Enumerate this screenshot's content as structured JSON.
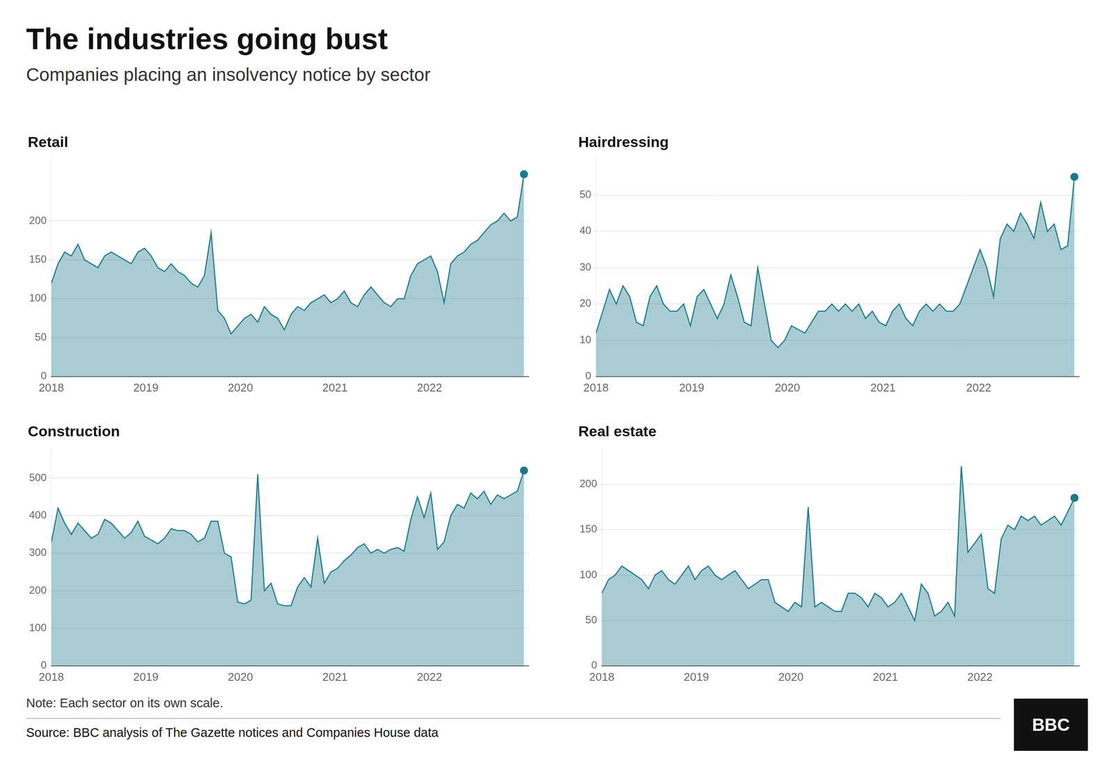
{
  "title": "The industries going bust",
  "subtitle": "Companies placing an insolvency notice by sector",
  "annotations": [
    "Note: Each sector on its own scale.",
    "Source: BBC analysis of The Gazette notices and Companies House data",
    "BBC"
  ],
  "chart_data": [
    {
      "type": "area",
      "title": "Retail",
      "x": [
        2018,
        2018.0704,
        2018.1408,
        2018.2113,
        2018.2817,
        2018.3521,
        2018.4225,
        2018.493,
        2018.5634,
        2018.6338,
        2018.7042,
        2018.7746,
        2018.8451,
        2018.9155,
        2018.9859,
        2019.0563,
        2019.1268,
        2019.1972,
        2019.2676,
        2019.338,
        2019.4085,
        2019.4789,
        2019.5493,
        2019.6197,
        2019.6901,
        2019.7606,
        2019.831,
        2019.9014,
        2019.9718,
        2020.0423,
        2020.1127,
        2020.1831,
        2020.2535,
        2020.3239,
        2020.3944,
        2020.4648,
        2020.5352,
        2020.6056,
        2020.6761,
        2020.7465,
        2020.8169,
        2020.8873,
        2020.9577,
        2021.0282,
        2021.0986,
        2021.169,
        2021.2394,
        2021.3099,
        2021.3803,
        2021.4507,
        2021.5211,
        2021.5915,
        2021.662,
        2021.7324,
        2021.8028,
        2021.8732,
        2021.9437,
        2022.0141,
        2022.0845,
        2022.1549,
        2022.2254,
        2022.2958,
        2022.3662,
        2022.4366,
        2022.507,
        2022.5775,
        2022.6479,
        2022.7183,
        2022.7887,
        2022.8592,
        2022.9296,
        2023
      ],
      "series": [
        {
          "color": "#1a7a8a",
          "values": [
            120,
            145,
            160,
            155,
            170,
            150,
            145,
            140,
            155,
            160,
            155,
            150,
            145,
            160,
            165,
            155,
            140,
            135,
            145,
            135,
            130,
            120,
            115,
            130,
            185,
            85,
            75,
            55,
            65,
            75,
            80,
            70,
            90,
            80,
            75,
            60,
            80,
            90,
            85,
            95,
            100,
            105,
            95,
            100,
            110,
            95,
            90,
            105,
            115,
            105,
            95,
            90,
            100,
            100,
            130,
            145,
            150,
            155,
            135,
            95,
            145,
            155,
            160,
            170,
            175,
            185,
            195,
            200,
            210,
            200,
            205,
            260
          ]
        }
      ],
      "xlim": [
        2018,
        2023.05
      ],
      "xticks": [
        2018,
        2019,
        2020,
        2021,
        2022
      ],
      "ylim": [
        0,
        280
      ],
      "yticks": [
        0,
        50,
        100,
        150,
        200
      ],
      "grid": true
    },
    {
      "type": "area",
      "title": "Hairdressing",
      "x": [
        2018,
        2018.0704,
        2018.1408,
        2018.2113,
        2018.2817,
        2018.3521,
        2018.4225,
        2018.493,
        2018.5634,
        2018.6338,
        2018.7042,
        2018.7746,
        2018.8451,
        2018.9155,
        2018.9859,
        2019.0563,
        2019.1268,
        2019.1972,
        2019.2676,
        2019.338,
        2019.4085,
        2019.4789,
        2019.5493,
        2019.6197,
        2019.6901,
        2019.7606,
        2019.831,
        2019.9014,
        2019.9718,
        2020.0423,
        2020.1127,
        2020.1831,
        2020.2535,
        2020.3239,
        2020.3944,
        2020.4648,
        2020.5352,
        2020.6056,
        2020.6761,
        2020.7465,
        2020.8169,
        2020.8873,
        2020.9577,
        2021.0282,
        2021.0986,
        2021.169,
        2021.2394,
        2021.3099,
        2021.3803,
        2021.4507,
        2021.5211,
        2021.5915,
        2021.662,
        2021.7324,
        2021.8028,
        2021.8732,
        2021.9437,
        2022.0141,
        2022.0845,
        2022.1549,
        2022.2254,
        2022.2958,
        2022.3662,
        2022.4366,
        2022.507,
        2022.5775,
        2022.6479,
        2022.7183,
        2022.7887,
        2022.8592,
        2022.9296,
        2023
      ],
      "series": [
        {
          "color": "#1a7a8a",
          "values": [
            12,
            18,
            24,
            20,
            25,
            22,
            15,
            14,
            22,
            25,
            20,
            18,
            18,
            20,
            14,
            22,
            24,
            20,
            16,
            20,
            28,
            22,
            15,
            14,
            30,
            20,
            10,
            8,
            10,
            14,
            13,
            12,
            15,
            18,
            18,
            20,
            18,
            20,
            18,
            20,
            16,
            18,
            15,
            14,
            18,
            20,
            16,
            14,
            18,
            20,
            18,
            20,
            18,
            18,
            20,
            25,
            30,
            35,
            30,
            22,
            38,
            42,
            40,
            45,
            42,
            38,
            48,
            40,
            42,
            35,
            36,
            55
          ]
        }
      ],
      "xlim": [
        2018,
        2023.05
      ],
      "xticks": [
        2018,
        2019,
        2020,
        2021,
        2022
      ],
      "ylim": [
        0,
        60
      ],
      "yticks": [
        0,
        10,
        20,
        30,
        40,
        50
      ],
      "grid": true
    },
    {
      "type": "area",
      "title": "Construction",
      "x": [
        2018,
        2018.0704,
        2018.1408,
        2018.2113,
        2018.2817,
        2018.3521,
        2018.4225,
        2018.493,
        2018.5634,
        2018.6338,
        2018.7042,
        2018.7746,
        2018.8451,
        2018.9155,
        2018.9859,
        2019.0563,
        2019.1268,
        2019.1972,
        2019.2676,
        2019.338,
        2019.4085,
        2019.4789,
        2019.5493,
        2019.6197,
        2019.6901,
        2019.7606,
        2019.831,
        2019.9014,
        2019.9718,
        2020.0423,
        2020.1127,
        2020.1831,
        2020.2535,
        2020.3239,
        2020.3944,
        2020.4648,
        2020.5352,
        2020.6056,
        2020.6761,
        2020.7465,
        2020.8169,
        2020.8873,
        2020.9577,
        2021.0282,
        2021.0986,
        2021.169,
        2021.2394,
        2021.3099,
        2021.3803,
        2021.4507,
        2021.5211,
        2021.5915,
        2021.662,
        2021.7324,
        2021.8028,
        2021.8732,
        2021.9437,
        2022.0141,
        2022.0845,
        2022.1549,
        2022.2254,
        2022.2958,
        2022.3662,
        2022.4366,
        2022.507,
        2022.5775,
        2022.6479,
        2022.7183,
        2022.7887,
        2022.8592,
        2022.9296,
        2023
      ],
      "series": [
        {
          "color": "#1a7a8a",
          "values": [
            330,
            420,
            380,
            350,
            380,
            360,
            340,
            350,
            390,
            380,
            360,
            340,
            355,
            385,
            345,
            335,
            325,
            340,
            365,
            360,
            360,
            350,
            330,
            340,
            385,
            385,
            300,
            290,
            170,
            165,
            175,
            510,
            200,
            220,
            165,
            160,
            160,
            210,
            235,
            210,
            340,
            220,
            250,
            260,
            280,
            295,
            315,
            325,
            300,
            310,
            300,
            310,
            315,
            305,
            390,
            450,
            395,
            460,
            310,
            330,
            400,
            430,
            420,
            460,
            445,
            465,
            430,
            455,
            445,
            455,
            465,
            520
          ]
        }
      ],
      "xlim": [
        2018,
        2023.05
      ],
      "xticks": [
        2018,
        2019,
        2020,
        2021,
        2022
      ],
      "ylim": [
        0,
        580
      ],
      "yticks": [
        0,
        100,
        200,
        300,
        400,
        500
      ],
      "grid": true
    },
    {
      "type": "area",
      "title": "Real estate",
      "x": [
        2018,
        2018.0704,
        2018.1408,
        2018.2113,
        2018.2817,
        2018.3521,
        2018.4225,
        2018.493,
        2018.5634,
        2018.6338,
        2018.7042,
        2018.7746,
        2018.8451,
        2018.9155,
        2018.9859,
        2019.0563,
        2019.1268,
        2019.1972,
        2019.2676,
        2019.338,
        2019.4085,
        2019.4789,
        2019.5493,
        2019.6197,
        2019.6901,
        2019.7606,
        2019.831,
        2019.9014,
        2019.9718,
        2020.0423,
        2020.1127,
        2020.1831,
        2020.2535,
        2020.3239,
        2020.3944,
        2020.4648,
        2020.5352,
        2020.6056,
        2020.6761,
        2020.7465,
        2020.8169,
        2020.8873,
        2020.9577,
        2021.0282,
        2021.0986,
        2021.169,
        2021.2394,
        2021.3099,
        2021.3803,
        2021.4507,
        2021.5211,
        2021.5915,
        2021.662,
        2021.7324,
        2021.8028,
        2021.8732,
        2021.9437,
        2022.0141,
        2022.0845,
        2022.1549,
        2022.2254,
        2022.2958,
        2022.3662,
        2022.4366,
        2022.507,
        2022.5775,
        2022.6479,
        2022.7183,
        2022.7887,
        2022.8592,
        2022.9296,
        2023
      ],
      "series": [
        {
          "color": "#1a7a8a",
          "values": [
            80,
            95,
            100,
            110,
            105,
            100,
            95,
            85,
            100,
            105,
            95,
            90,
            100,
            110,
            95,
            105,
            110,
            100,
            95,
            100,
            105,
            95,
            85,
            90,
            95,
            95,
            70,
            65,
            60,
            70,
            65,
            175,
            65,
            70,
            65,
            60,
            60,
            80,
            80,
            75,
            65,
            80,
            75,
            65,
            70,
            80,
            65,
            50,
            90,
            80,
            55,
            60,
            70,
            55,
            220,
            125,
            135,
            145,
            85,
            80,
            140,
            155,
            150,
            165,
            160,
            165,
            155,
            160,
            165,
            155,
            170,
            185
          ]
        }
      ],
      "xlim": [
        2018,
        2023.05
      ],
      "xticks": [
        2018,
        2019,
        2020,
        2021,
        2022
      ],
      "ylim": [
        0,
        240
      ],
      "yticks": [
        0,
        50,
        100,
        150,
        200
      ],
      "grid": true
    }
  ]
}
